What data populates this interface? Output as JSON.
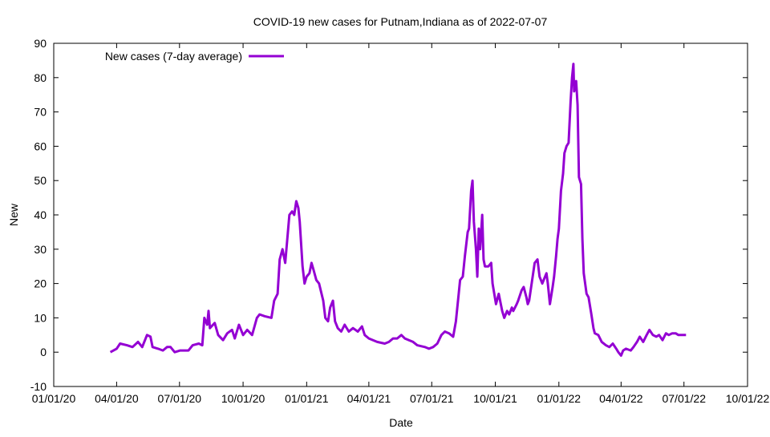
{
  "chart_data": {
    "type": "line",
    "title": "COVID-19 new cases for Putnam,Indiana as of 2022-07-07",
    "xlabel": "Date",
    "ylabel": "New",
    "x_unit": "days since 2020-01-01",
    "xlim": [
      0,
      1004
    ],
    "ylim": [
      -10,
      90
    ],
    "yticks": [
      -10,
      0,
      10,
      20,
      30,
      40,
      50,
      60,
      70,
      80,
      90
    ],
    "xticks": [
      {
        "day": 0,
        "label": "01/01/20"
      },
      {
        "day": 91,
        "label": "04/01/20"
      },
      {
        "day": 182,
        "label": "07/01/20"
      },
      {
        "day": 274,
        "label": "10/01/20"
      },
      {
        "day": 366,
        "label": "01/01/21"
      },
      {
        "day": 456,
        "label": "04/01/21"
      },
      {
        "day": 547,
        "label": "07/01/21"
      },
      {
        "day": 639,
        "label": "10/01/21"
      },
      {
        "day": 731,
        "label": "01/01/22"
      },
      {
        "day": 821,
        "label": "04/01/22"
      },
      {
        "day": 912,
        "label": "07/01/22"
      },
      {
        "day": 1004,
        "label": "10/01/22"
      }
    ],
    "grid": false,
    "legend_position": "top-left",
    "series": [
      {
        "name": "New cases (7-day average)",
        "color": "#9400d3",
        "x": [
          82,
          91,
          96,
          106,
          114,
          122,
          128,
          135,
          140,
          143,
          151,
          158,
          164,
          169,
          175,
          183,
          195,
          201,
          210,
          215,
          218,
          222,
          224,
          226,
          233,
          238,
          245,
          251,
          258,
          262,
          268,
          274,
          280,
          287,
          294,
          298,
          305,
          315,
          319,
          324,
          327,
          331,
          335,
          338,
          341,
          345,
          348,
          351,
          354,
          356,
          360,
          363,
          366,
          370,
          373,
          376,
          380,
          384,
          390,
          393,
          397,
          400,
          404,
          407,
          411,
          416,
          421,
          427,
          433,
          440,
          446,
          450,
          456,
          468,
          479,
          485,
          491,
          497,
          503,
          508,
          520,
          526,
          537,
          543,
          549,
          555,
          561,
          566,
          572,
          578,
          582,
          586,
          588,
          592,
          595,
          599,
          601,
          604,
          606,
          608,
          611,
          613,
          615,
          617,
          620,
          622,
          624,
          629,
          633,
          635,
          640,
          644,
          649,
          652,
          656,
          659,
          663,
          665,
          670,
          672,
          677,
          680,
          684,
          686,
          688,
          693,
          696,
          700,
          703,
          707,
          709,
          713,
          715,
          718,
          722,
          724,
          727,
          729,
          731,
          734,
          737,
          739,
          742,
          745,
          748,
          750,
          752,
          753,
          756,
          758,
          760,
          763,
          765,
          767,
          771,
          774,
          778,
          781,
          783,
          788,
          793,
          799,
          804,
          809,
          814,
          817,
          821,
          824,
          828,
          835,
          839,
          844,
          848,
          853,
          858,
          862,
          867,
          872,
          876,
          881,
          886,
          890,
          895,
          900,
          904,
          909,
          915
        ],
        "y": [
          0,
          1,
          2.5,
          2,
          1.5,
          3,
          1.5,
          5,
          4.5,
          1.5,
          1,
          0.5,
          1.5,
          1.5,
          0,
          0.5,
          0.5,
          2,
          2.5,
          2,
          10,
          8,
          12,
          7,
          8.5,
          5,
          3.5,
          5.5,
          6.5,
          4,
          8,
          5,
          6.5,
          5,
          10,
          11,
          10.5,
          10,
          15,
          17,
          27,
          30,
          26,
          33,
          40,
          41,
          40,
          44,
          42,
          38,
          25,
          20,
          22,
          23,
          26,
          24,
          21,
          20,
          15,
          10,
          9,
          13,
          15,
          9,
          7,
          6,
          8,
          6,
          7,
          6,
          7.5,
          5,
          4,
          3,
          2.5,
          3,
          4,
          4,
          5,
          4,
          3,
          2,
          1.5,
          1,
          1.5,
          2.5,
          5,
          6,
          5.5,
          4.5,
          9,
          17,
          21,
          22,
          28,
          35,
          36,
          47,
          50,
          38,
          30,
          22,
          36,
          30,
          40,
          27,
          25,
          25,
          26,
          20,
          14,
          17,
          12,
          10,
          12,
          11,
          13,
          12,
          14,
          15,
          18,
          19,
          16,
          14,
          15,
          22,
          26,
          27,
          22,
          20,
          21,
          23,
          20,
          14,
          19,
          22,
          28,
          33,
          36,
          47,
          52,
          58,
          60,
          61,
          73,
          80,
          84,
          76,
          79,
          72,
          51,
          49,
          33,
          23,
          17,
          16,
          11,
          7,
          5.5,
          5,
          3,
          2,
          1.5,
          2.5,
          1,
          0,
          -1,
          0.5,
          1,
          0.5,
          1.5,
          3,
          4.5,
          3,
          5,
          6.5,
          5,
          4.5,
          5,
          3.5,
          5.5,
          5,
          5.5,
          5.5,
          5,
          5,
          5
        ]
      }
    ]
  }
}
